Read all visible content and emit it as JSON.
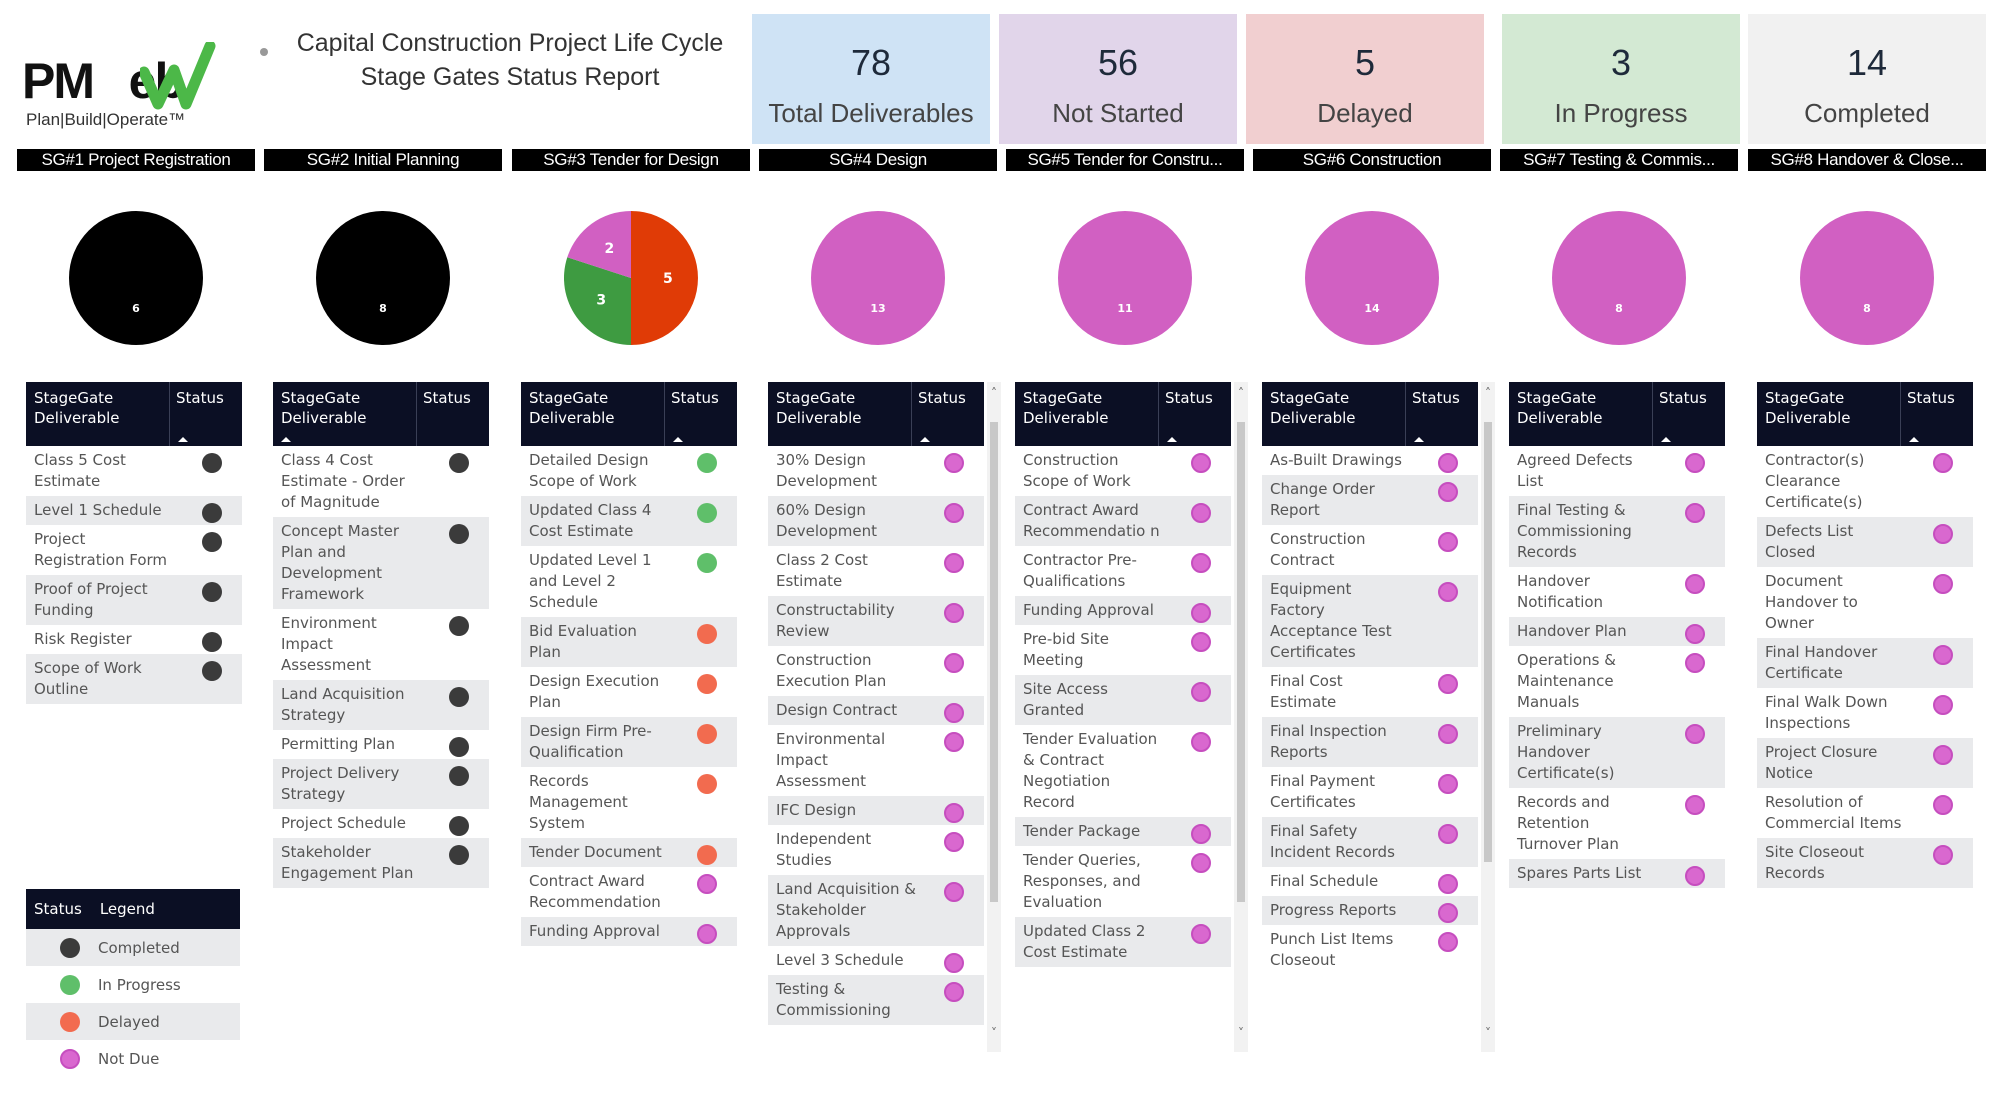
{
  "logo": {
    "brand_text": "PMWeb",
    "tagline": "Plan|Build|Operate™"
  },
  "title": {
    "line1": "Capital Construction Project Life Cycle",
    "line2": "Stage Gates Status Report"
  },
  "kpis": [
    {
      "value": "78",
      "label": "Total Deliverables",
      "color": "#cfe3f5"
    },
    {
      "value": "56",
      "label": "Not Started",
      "color": "#e1d5ea"
    },
    {
      "value": "5",
      "label": "Delayed",
      "color": "#f1cfd0"
    },
    {
      "value": "3",
      "label": "In Progress",
      "color": "#d3e9d3"
    },
    {
      "value": "14",
      "label": "Completed",
      "color": "#f1f1f1"
    }
  ],
  "status_colors": {
    "Completed": "#3b3b3b",
    "In Progress": "#5fbf6a",
    "Delayed": "#f26b4f",
    "Not Due": "#d968cf"
  },
  "pie_colors": {
    "Completed": "#000000",
    "In Progress": "#3e9b41",
    "Delayed": "#e03b06",
    "Not Due": "#d160c2"
  },
  "table_headers": {
    "deliverable": "StageGate Deliverable",
    "status": "Status"
  },
  "legend": {
    "header_status": "Status",
    "header_legend": "Legend",
    "items": [
      "Completed",
      "In Progress",
      "Delayed",
      "Not Due"
    ]
  },
  "chart_data": [
    {
      "type": "pie",
      "title": "SG#1 Project Registration",
      "slices": [
        {
          "label": "Completed",
          "value": 6
        }
      ]
    },
    {
      "type": "pie",
      "title": "SG#2 Initial Planning",
      "slices": [
        {
          "label": "Completed",
          "value": 8
        }
      ]
    },
    {
      "type": "pie",
      "title": "SG#3 Tender for Design",
      "slices": [
        {
          "label": "Delayed",
          "value": 5
        },
        {
          "label": "In Progress",
          "value": 3
        },
        {
          "label": "Not Due",
          "value": 2
        }
      ]
    },
    {
      "type": "pie",
      "title": "SG#4 Design",
      "slices": [
        {
          "label": "Not Due",
          "value": 13
        }
      ]
    },
    {
      "type": "pie",
      "title": "SG#5 Tender for Constru...",
      "slices": [
        {
          "label": "Not Due",
          "value": 11
        }
      ]
    },
    {
      "type": "pie",
      "title": "SG#6 Construction",
      "slices": [
        {
          "label": "Not Due",
          "value": 14
        }
      ]
    },
    {
      "type": "pie",
      "title": "SG#7 Testing & Commis...",
      "slices": [
        {
          "label": "Not Due",
          "value": 8
        }
      ]
    },
    {
      "type": "pie",
      "title": "SG#8 Handover & Close...",
      "slices": [
        {
          "label": "Not Due",
          "value": 8
        }
      ]
    }
  ],
  "stages": [
    {
      "label": "SG#1 Project Registration",
      "sort_on": "status",
      "scrollable": false,
      "rows": [
        [
          "Class 5 Cost Estimate",
          "Completed"
        ],
        [
          "Level 1 Schedule",
          "Completed"
        ],
        [
          "Project Registration Form",
          "Completed"
        ],
        [
          "Proof of Project Funding",
          "Completed"
        ],
        [
          "Risk Register",
          "Completed"
        ],
        [
          "Scope of Work Outline",
          "Completed"
        ]
      ]
    },
    {
      "label": "SG#2 Initial Planning",
      "sort_on": "deliverable",
      "scrollable": false,
      "rows": [
        [
          "Class 4 Cost Estimate - Order of Magnitude",
          "Completed"
        ],
        [
          "Concept Master Plan and Development Framework",
          "Completed"
        ],
        [
          "Environment Impact Assessment",
          "Completed"
        ],
        [
          "Land Acquisition Strategy",
          "Completed"
        ],
        [
          "Permitting Plan",
          "Completed"
        ],
        [
          "Project Delivery Strategy",
          "Completed"
        ],
        [
          "Project Schedule",
          "Completed"
        ],
        [
          "Stakeholder Engagement Plan",
          "Completed"
        ]
      ]
    },
    {
      "label": "SG#3 Tender for Design",
      "sort_on": "status",
      "scrollable": false,
      "rows": [
        [
          "Detailed Design Scope of Work",
          "In Progress"
        ],
        [
          "Updated Class 4 Cost Estimate",
          "In Progress"
        ],
        [
          "Updated Level 1 and Level 2 Schedule",
          "In Progress"
        ],
        [
          "Bid Evaluation Plan",
          "Delayed"
        ],
        [
          "Design Execution Plan",
          "Delayed"
        ],
        [
          "Design Firm Pre-Qualification",
          "Delayed"
        ],
        [
          "Records Management System",
          "Delayed"
        ],
        [
          "Tender Document",
          "Delayed"
        ],
        [
          "Contract Award Recommendation",
          "Not Due"
        ],
        [
          "Funding Approval",
          "Not Due"
        ]
      ]
    },
    {
      "label": "SG#4 Design",
      "sort_on": "status",
      "scrollable": true,
      "rows": [
        [
          "30% Design Development",
          "Not Due"
        ],
        [
          "60% Design Development",
          "Not Due"
        ],
        [
          "Class 2 Cost Estimate",
          "Not Due"
        ],
        [
          "Constructability Review",
          "Not Due"
        ],
        [
          "Construction Execution Plan",
          "Not Due"
        ],
        [
          "Design Contract",
          "Not Due"
        ],
        [
          "Environmental Impact Assessment",
          "Not Due"
        ],
        [
          "IFC Design",
          "Not Due"
        ],
        [
          "Independent Studies",
          "Not Due"
        ],
        [
          "Land Acquisition & Stakeholder Approvals",
          "Not Due"
        ],
        [
          "Level 3 Schedule",
          "Not Due"
        ],
        [
          "Testing & Commissioning",
          "Not Due"
        ]
      ]
    },
    {
      "label": "SG#5 Tender for Constru...",
      "sort_on": "status",
      "scrollable": true,
      "rows": [
        [
          "Construction Scope of Work",
          "Not Due"
        ],
        [
          "Contract Award Recommendatio n",
          "Not Due"
        ],
        [
          "Contractor Pre-Qualifications",
          "Not Due"
        ],
        [
          "Funding Approval",
          "Not Due"
        ],
        [
          "Pre-bid Site Meeting",
          "Not Due"
        ],
        [
          "Site Access Granted",
          "Not Due"
        ],
        [
          "Tender Evaluation & Contract Negotiation Record",
          "Not Due"
        ],
        [
          "Tender Package",
          "Not Due"
        ],
        [
          "Tender Queries, Responses, and Evaluation",
          "Not Due"
        ],
        [
          "Updated Class 2 Cost Estimate",
          "Not Due"
        ]
      ]
    },
    {
      "label": "SG#6 Construction",
      "sort_on": "status",
      "scrollable": true,
      "rows": [
        [
          "As-Built Drawings",
          "Not Due"
        ],
        [
          "Change Order Report",
          "Not Due"
        ],
        [
          "Construction Contract",
          "Not Due"
        ],
        [
          "Equipment Factory Acceptance Test Certificates",
          "Not Due"
        ],
        [
          "Final Cost Estimate",
          "Not Due"
        ],
        [
          "Final Inspection Reports",
          "Not Due"
        ],
        [
          "Final Payment Certificates",
          "Not Due"
        ],
        [
          "Final Safety Incident Records",
          "Not Due"
        ],
        [
          "Final Schedule",
          "Not Due"
        ],
        [
          "Progress Reports",
          "Not Due"
        ],
        [
          "Punch List Items Closeout",
          "Not Due"
        ]
      ]
    },
    {
      "label": "SG#7 Testing & Commis...",
      "sort_on": "status",
      "scrollable": false,
      "rows": [
        [
          "Agreed Defects List",
          "Not Due"
        ],
        [
          "Final Testing & Commissioning Records",
          "Not Due"
        ],
        [
          "Handover Notification",
          "Not Due"
        ],
        [
          "Handover Plan",
          "Not Due"
        ],
        [
          "Operations & Maintenance Manuals",
          "Not Due"
        ],
        [
          "Preliminary Handover Certificate(s)",
          "Not Due"
        ],
        [
          "Records and Retention Turnover Plan",
          "Not Due"
        ],
        [
          "Spares Parts List",
          "Not Due"
        ]
      ]
    },
    {
      "label": "SG#8 Handover & Close...",
      "sort_on": "status",
      "scrollable": false,
      "rows": [
        [
          "Contractor(s) Clearance Certificate(s)",
          "Not Due"
        ],
        [
          "Defects List Closed",
          "Not Due"
        ],
        [
          "Document Handover to Owner",
          "Not Due"
        ],
        [
          "Final Handover Certificate",
          "Not Due"
        ],
        [
          "Final Walk Down Inspections",
          "Not Due"
        ],
        [
          "Project Closure Notice",
          "Not Due"
        ],
        [
          "Resolution of Commercial Items",
          "Not Due"
        ],
        [
          "Site Closeout Records",
          "Not Due"
        ]
      ]
    }
  ]
}
